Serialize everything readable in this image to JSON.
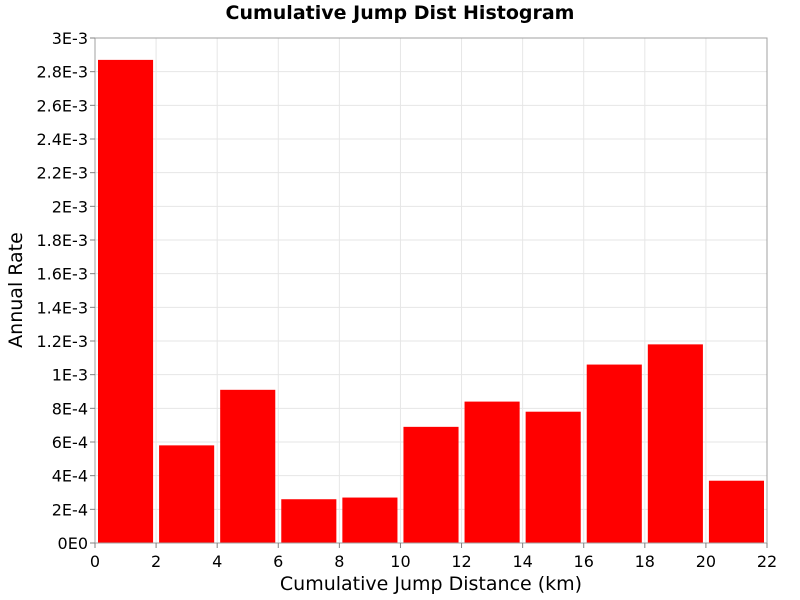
{
  "chart_data": {
    "type": "bar",
    "title": "Cumulative Jump Dist Histogram",
    "xlabel": "Cumulative Jump Distance (km)",
    "ylabel": "Annual Rate",
    "x": [
      1,
      3,
      5,
      7,
      9,
      11,
      13,
      15,
      17,
      19,
      21
    ],
    "bin_width": 2,
    "values": [
      0.00287,
      0.00058,
      0.00091,
      0.00026,
      0.00027,
      0.00069,
      0.00084,
      0.00078,
      0.00106,
      0.00118,
      0.00037
    ],
    "xlim": [
      0,
      22
    ],
    "ylim": [
      0,
      0.003
    ],
    "x_ticks": [
      "0",
      "2",
      "4",
      "6",
      "8",
      "10",
      "12",
      "14",
      "16",
      "18",
      "20",
      "22"
    ],
    "y_ticks": [
      "0E0",
      "2E-4",
      "4E-4",
      "6E-4",
      "8E-4",
      "1E-3",
      "1.2E-3",
      "1.4E-3",
      "1.6E-3",
      "1.8E-3",
      "2E-3",
      "2.2E-3",
      "2.4E-3",
      "2.6E-3",
      "2.8E-3",
      "3E-3"
    ],
    "grid": true,
    "bar_color": "#ff0000",
    "grid_color": "#e6e6e6"
  }
}
